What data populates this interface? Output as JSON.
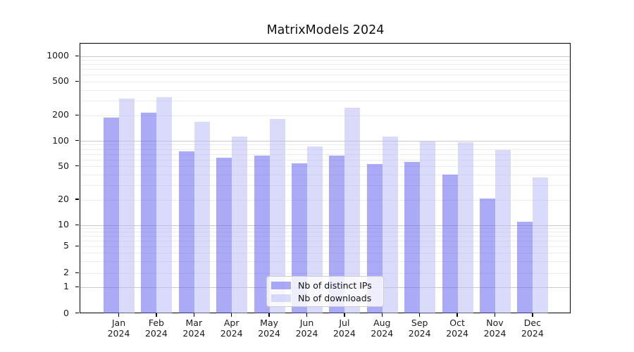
{
  "chart_data": {
    "type": "bar",
    "title": "MatrixModels 2024",
    "categories": [
      "Jan 2024",
      "Feb 2024",
      "Mar 2024",
      "Apr 2024",
      "May 2024",
      "Jun 2024",
      "Jul 2024",
      "Aug 2024",
      "Sep 2024",
      "Oct 2024",
      "Nov 2024",
      "Dec 2024"
    ],
    "series": [
      {
        "name": "Nb of distinct IPs",
        "slug": "distinct-ips",
        "color": "rgba(100,100,238,0.55)",
        "values": [
          191,
          218,
          76,
          64,
          67,
          55,
          68,
          54,
          57,
          40,
          21,
          11
        ]
      },
      {
        "name": "Nb of downloads",
        "slug": "downloads",
        "color": "rgba(187,187,246,0.55)",
        "values": [
          320,
          331,
          170,
          114,
          184,
          87,
          247,
          114,
          100,
          97,
          78,
          37
        ]
      }
    ],
    "yscale": "log (symlog: linear segment below 1, log above)",
    "y_ticks": [
      0,
      1,
      2,
      5,
      10,
      20,
      50,
      100,
      200,
      500,
      1000
    ],
    "ylim": [
      0,
      1400
    ],
    "xlabel": "",
    "ylabel": "",
    "grid": true,
    "legend_position": "lower center",
    "colors": {
      "grid_major": "#c9c9c9",
      "grid_minor": "#ececec",
      "axis": "#000000",
      "text": "#1a1a1a"
    }
  }
}
